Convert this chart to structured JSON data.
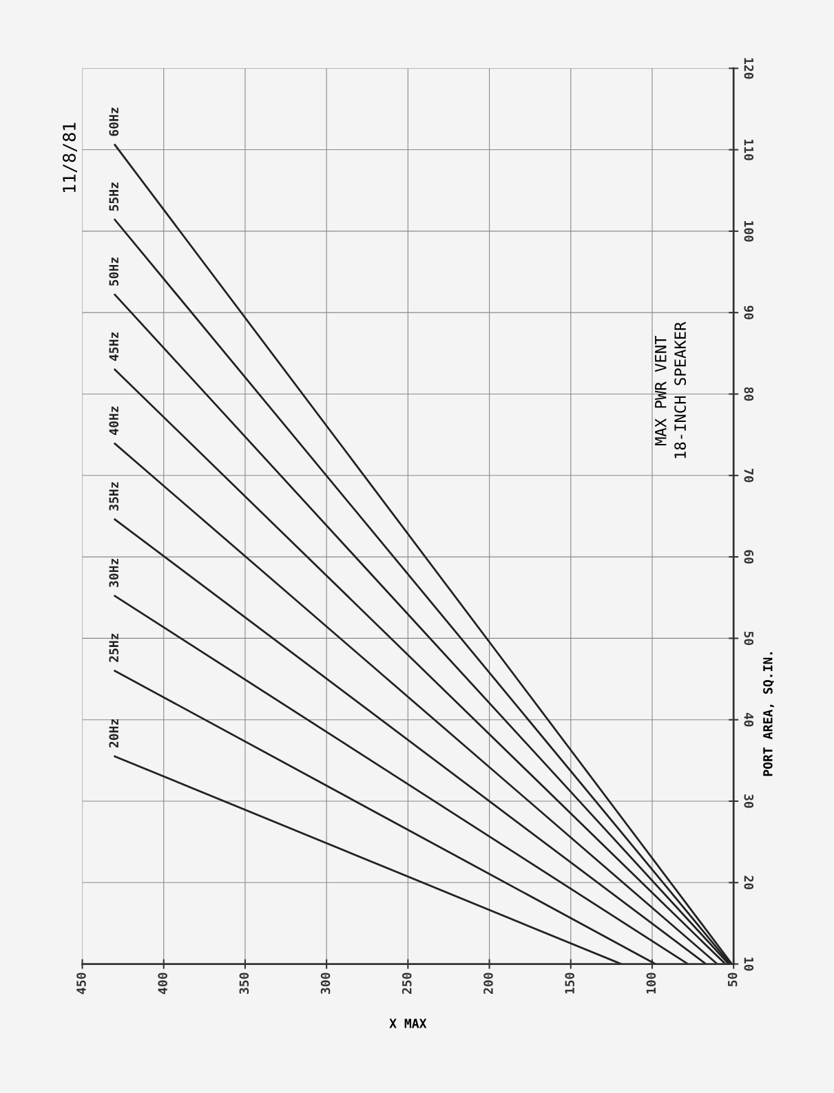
{
  "chart_data": {
    "type": "line",
    "title": "MAX PWR VENT",
    "subtitle": "18-INCH SPEAKER",
    "xlabel": "X MAX",
    "ylabel": "PORT AREA, SQ.IN.",
    "annotations": [
      "11/8/81"
    ],
    "xlim": [
      450,
      50
    ],
    "xticks": [
      450,
      400,
      350,
      300,
      250,
      200,
      150,
      100,
      50
    ],
    "ylim": [
      10,
      120
    ],
    "yticks": [
      10,
      20,
      30,
      40,
      50,
      60,
      70,
      80,
      90,
      100,
      110,
      120
    ],
    "grid": true,
    "legend": false,
    "marker": "none",
    "line_style": "solid",
    "series": [
      {
        "name": "20Hz",
        "color": "#222222",
        "x": [
          430,
          119
        ],
        "values": [
          35.5,
          10
        ]
      },
      {
        "name": "25Hz",
        "color": "#222222",
        "x": [
          430,
          98
        ],
        "values": [
          46,
          10
        ]
      },
      {
        "name": "30Hz",
        "color": "#222222",
        "x": [
          430,
          78
        ],
        "values": [
          55.2,
          10
        ]
      },
      {
        "name": "35Hz",
        "color": "#222222",
        "x": [
          430,
          67
        ],
        "values": [
          64.6,
          10
        ]
      },
      {
        "name": "40Hz",
        "color": "#222222",
        "x": [
          430,
          60
        ],
        "values": [
          73.9,
          10
        ]
      },
      {
        "name": "45Hz",
        "color": "#222222",
        "x": [
          430,
          55
        ],
        "values": [
          83,
          10
        ]
      },
      {
        "name": "50Hz",
        "color": "#222222",
        "x": [
          430,
          53
        ],
        "values": [
          92.2,
          10
        ]
      },
      {
        "name": "55Hz",
        "color": "#222222",
        "x": [
          430,
          52
        ],
        "values": [
          101.4,
          10
        ]
      },
      {
        "name": "60Hz",
        "color": "#222222",
        "x": [
          430,
          51
        ],
        "values": [
          110.6,
          10
        ]
      }
    ]
  }
}
